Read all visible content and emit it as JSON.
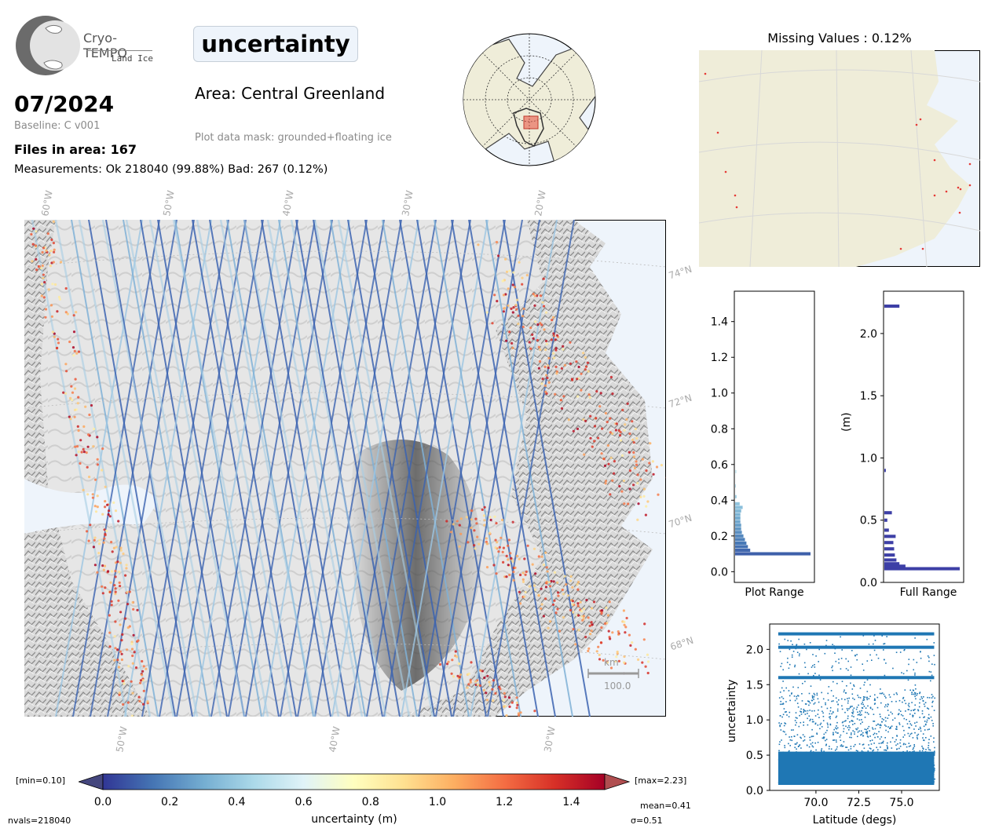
{
  "header": {
    "logo_name": "Cryo-TEMPO",
    "logo_sub": "Land Ice",
    "parameter": "uncertainty",
    "month": "07/2024",
    "baseline": "Baseline: C v001",
    "files": "Files in area: 167",
    "measurements": "Measurements: Ok 218040 (99.88%) Bad: 267 (0.12%)",
    "area": "Area: Central Greenland",
    "mask": "Plot data mask: grounded+floating ice"
  },
  "map": {
    "lon_labels_top": [
      "60°W",
      "50°W",
      "40°W",
      "30°W",
      "20°W"
    ],
    "lon_labels_bottom": [
      "50°W",
      "40°W",
      "30°W"
    ],
    "lat_labels": [
      "74°N",
      "72°N",
      "70°N",
      "68°N"
    ],
    "scale_unit": "km",
    "scale_value": "100.0"
  },
  "missing": {
    "title": "Missing Values : 0.12%"
  },
  "colorbar": {
    "min_label": "[min=0.10]",
    "max_label": "[max=2.23]",
    "ticks": [
      "0.0",
      "0.2",
      "0.4",
      "0.6",
      "0.8",
      "1.0",
      "1.2",
      "1.4"
    ],
    "label": "uncertainty (m)",
    "nvals": "nvals=218040",
    "mean": "mean=0.41",
    "sigma": "σ=0.51",
    "colors": [
      "#313695",
      "#4575b4",
      "#74add1",
      "#abd9e9",
      "#e0f3f8",
      "#ffffbf",
      "#fee090",
      "#fdae61",
      "#f46d43",
      "#d73027",
      "#a50026"
    ]
  },
  "chart_data": [
    {
      "type": "bar",
      "orientation": "horizontal",
      "xlabel": "Plot Range",
      "ylim": [
        -0.06,
        1.57
      ],
      "yticks": [
        "0.0",
        "0.2",
        "0.4",
        "0.6",
        "0.8",
        "1.0",
        "1.2",
        "1.4"
      ],
      "bins": [
        {
          "y": 0.1,
          "count": 1.0
        },
        {
          "y": 0.12,
          "count": 0.2
        },
        {
          "y": 0.14,
          "count": 0.17
        },
        {
          "y": 0.16,
          "count": 0.15
        },
        {
          "y": 0.18,
          "count": 0.13
        },
        {
          "y": 0.2,
          "count": 0.11
        },
        {
          "y": 0.22,
          "count": 0.09
        },
        {
          "y": 0.24,
          "count": 0.08
        },
        {
          "y": 0.26,
          "count": 0.08
        },
        {
          "y": 0.28,
          "count": 0.07
        },
        {
          "y": 0.3,
          "count": 0.07
        },
        {
          "y": 0.32,
          "count": 0.07
        },
        {
          "y": 0.34,
          "count": 0.08
        },
        {
          "y": 0.36,
          "count": 0.1
        },
        {
          "y": 0.38,
          "count": 0.06
        },
        {
          "y": 0.42,
          "count": 0.02
        },
        {
          "y": 0.48,
          "count": 0.01
        },
        {
          "y": 0.56,
          "count": 0.02
        }
      ]
    },
    {
      "type": "bar",
      "orientation": "horizontal",
      "xlabel": "Full Range",
      "ylabel": "(m)",
      "ylim": [
        0.0,
        2.34
      ],
      "yticks": [
        "0.0",
        "0.5",
        "1.0",
        "1.5",
        "2.0"
      ],
      "bins": [
        {
          "y": 0.11,
          "count": 1.0
        },
        {
          "y": 0.13,
          "count": 0.28
        },
        {
          "y": 0.15,
          "count": 0.2
        },
        {
          "y": 0.18,
          "count": 0.16
        },
        {
          "y": 0.22,
          "count": 0.14
        },
        {
          "y": 0.27,
          "count": 0.13
        },
        {
          "y": 0.32,
          "count": 0.12
        },
        {
          "y": 0.37,
          "count": 0.15
        },
        {
          "y": 0.42,
          "count": 0.06
        },
        {
          "y": 0.5,
          "count": 0.04
        },
        {
          "y": 0.56,
          "count": 0.1
        },
        {
          "y": 0.9,
          "count": 0.02
        },
        {
          "y": 2.22,
          "count": 0.2
        }
      ]
    },
    {
      "type": "scatter",
      "xlabel": "Latitude (degs)",
      "ylabel": "uncertainty",
      "xlim": [
        67.3,
        77.2
      ],
      "ylim": [
        0.0,
        2.36
      ],
      "xticks": [
        "70.0",
        "72.5",
        "75.0"
      ],
      "yticks": [
        "0.0",
        "0.5",
        "1.0",
        "1.5",
        "2.0"
      ],
      "x_range": [
        67.8,
        76.9
      ],
      "y_range": [
        0.1,
        2.23
      ],
      "dense_bands": [
        0.1,
        1.6,
        2.03,
        2.22
      ]
    }
  ]
}
